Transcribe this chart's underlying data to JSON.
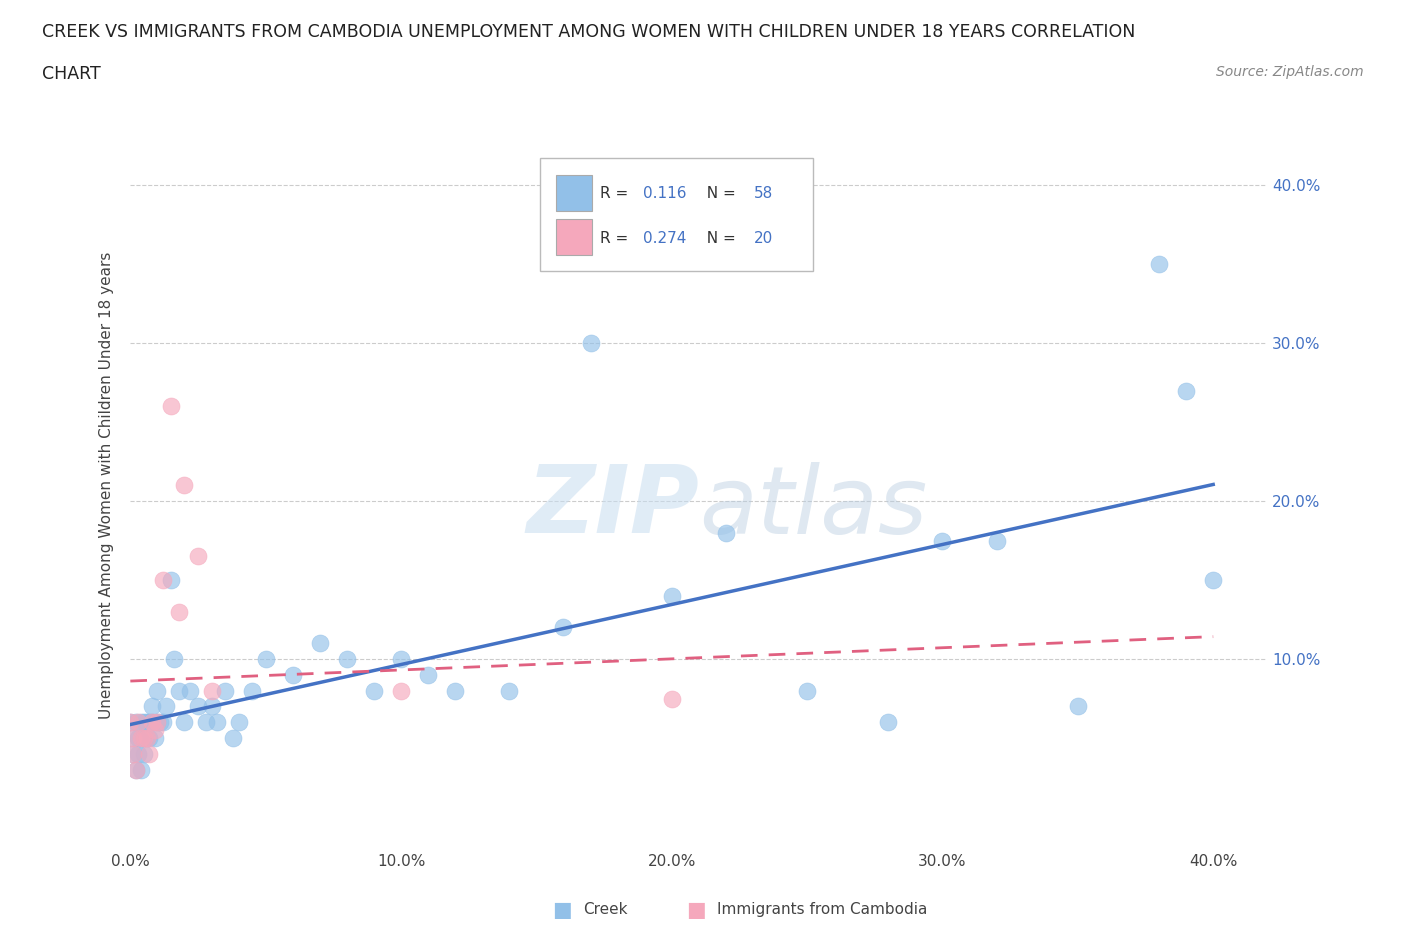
{
  "title_line1": "CREEK VS IMMIGRANTS FROM CAMBODIA UNEMPLOYMENT AMONG WOMEN WITH CHILDREN UNDER 18 YEARS CORRELATION",
  "title_line2": "CHART",
  "source": "Source: ZipAtlas.com",
  "ylabel": "Unemployment Among Women with Children Under 18 years",
  "xlim": [
    0.0,
    0.42
  ],
  "ylim": [
    -0.02,
    0.44
  ],
  "x_ticks": [
    0.0,
    0.1,
    0.2,
    0.3,
    0.4
  ],
  "y_ticks": [
    0.0,
    0.1,
    0.2,
    0.3,
    0.4
  ],
  "x_tick_labels": [
    "0.0%",
    "10.0%",
    "20.0%",
    "30.0%",
    "40.0%"
  ],
  "y_tick_labels": [
    "",
    "10.0%",
    "20.0%",
    "30.0%",
    "40.0%"
  ],
  "creek_color": "#92c0e8",
  "cambodia_color": "#f5a8bc",
  "creek_line_color": "#4472c4",
  "cambodia_line_color": "#e06080",
  "creek_R": 0.116,
  "creek_N": 58,
  "cambodia_R": 0.274,
  "cambodia_N": 20,
  "background_color": "#ffffff",
  "grid_color": "#cccccc",
  "creek_x": [
    0.0,
    0.001,
    0.001,
    0.002,
    0.002,
    0.003,
    0.003,
    0.004,
    0.004,
    0.005,
    0.005,
    0.005,
    0.006,
    0.006,
    0.007,
    0.007,
    0.008,
    0.008,
    0.009,
    0.01,
    0.01,
    0.011,
    0.012,
    0.013,
    0.015,
    0.016,
    0.018,
    0.02,
    0.022,
    0.025,
    0.028,
    0.03,
    0.032,
    0.035,
    0.038,
    0.04,
    0.045,
    0.05,
    0.06,
    0.07,
    0.08,
    0.09,
    0.1,
    0.11,
    0.12,
    0.14,
    0.16,
    0.17,
    0.2,
    0.22,
    0.25,
    0.28,
    0.3,
    0.32,
    0.35,
    0.38,
    0.39,
    0.4
  ],
  "creek_y": [
    0.06,
    0.05,
    0.04,
    0.03,
    0.06,
    0.05,
    0.04,
    0.03,
    0.06,
    0.04,
    0.05,
    0.06,
    0.05,
    0.06,
    0.06,
    0.05,
    0.06,
    0.07,
    0.05,
    0.06,
    0.08,
    0.06,
    0.06,
    0.07,
    0.15,
    0.1,
    0.08,
    0.06,
    0.08,
    0.07,
    0.06,
    0.07,
    0.06,
    0.08,
    0.05,
    0.06,
    0.08,
    0.1,
    0.09,
    0.11,
    0.1,
    0.08,
    0.1,
    0.09,
    0.08,
    0.08,
    0.12,
    0.3,
    0.14,
    0.18,
    0.08,
    0.06,
    0.175,
    0.175,
    0.07,
    0.35,
    0.27,
    0.15
  ],
  "cambodia_x": [
    0.0,
    0.001,
    0.001,
    0.002,
    0.003,
    0.004,
    0.005,
    0.006,
    0.007,
    0.008,
    0.009,
    0.01,
    0.012,
    0.015,
    0.018,
    0.02,
    0.025,
    0.03,
    0.1,
    0.2
  ],
  "cambodia_y": [
    0.06,
    0.05,
    0.04,
    0.03,
    0.06,
    0.05,
    0.05,
    0.05,
    0.04,
    0.06,
    0.055,
    0.06,
    0.15,
    0.26,
    0.13,
    0.21,
    0.165,
    0.08,
    0.08,
    0.075
  ]
}
